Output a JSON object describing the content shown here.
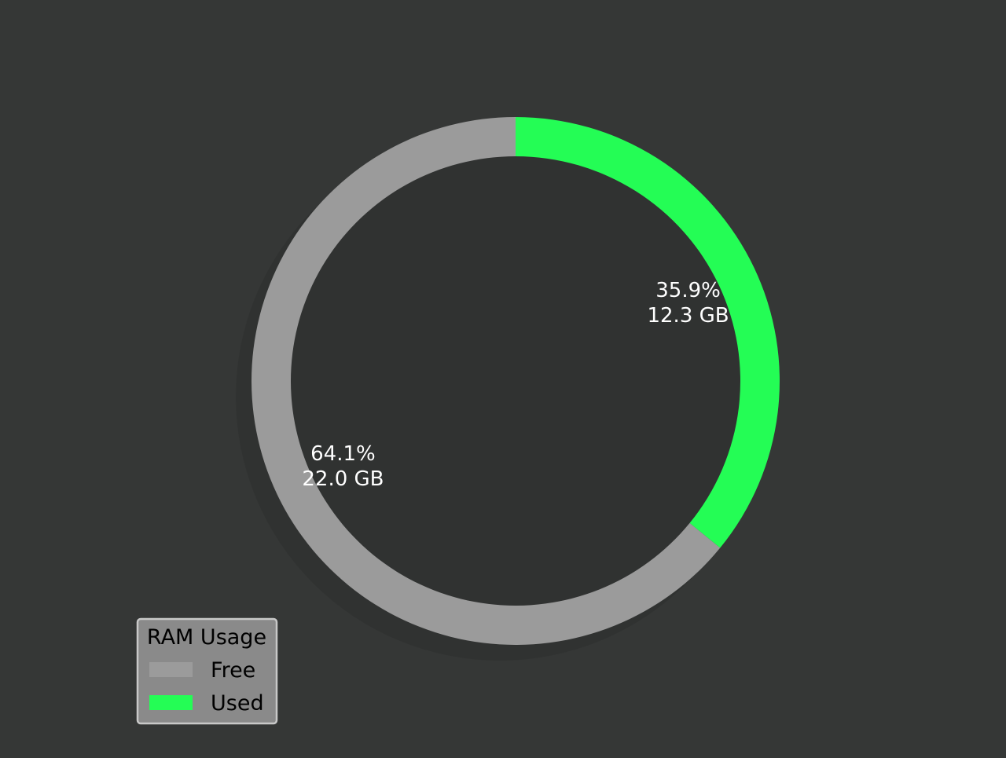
{
  "chart_data": {
    "type": "pie",
    "variant": "donut",
    "background_color": "#353736",
    "shadow": true,
    "start": "top",
    "direction": "clockwise",
    "slices": [
      {
        "name": "Used",
        "percent": 35.9,
        "value": 12.3,
        "unit": "GB",
        "percent_label": "35.9%",
        "value_label": "12.3 GB",
        "color": "#24fd55"
      },
      {
        "name": "Free",
        "percent": 64.1,
        "value": 22.0,
        "unit": "GB",
        "percent_label": "64.1%",
        "value_label": "22.0 GB",
        "color": "#9b9b9b"
      }
    ],
    "legend": {
      "title": "RAM Usage",
      "placement": "lower-left",
      "background_color": "#8a8a8a",
      "border_color": "#c8c8c8",
      "entries": [
        {
          "label": "Free",
          "color": "#9b9b9b"
        },
        {
          "label": "Used",
          "color": "#24fd55"
        }
      ]
    }
  }
}
